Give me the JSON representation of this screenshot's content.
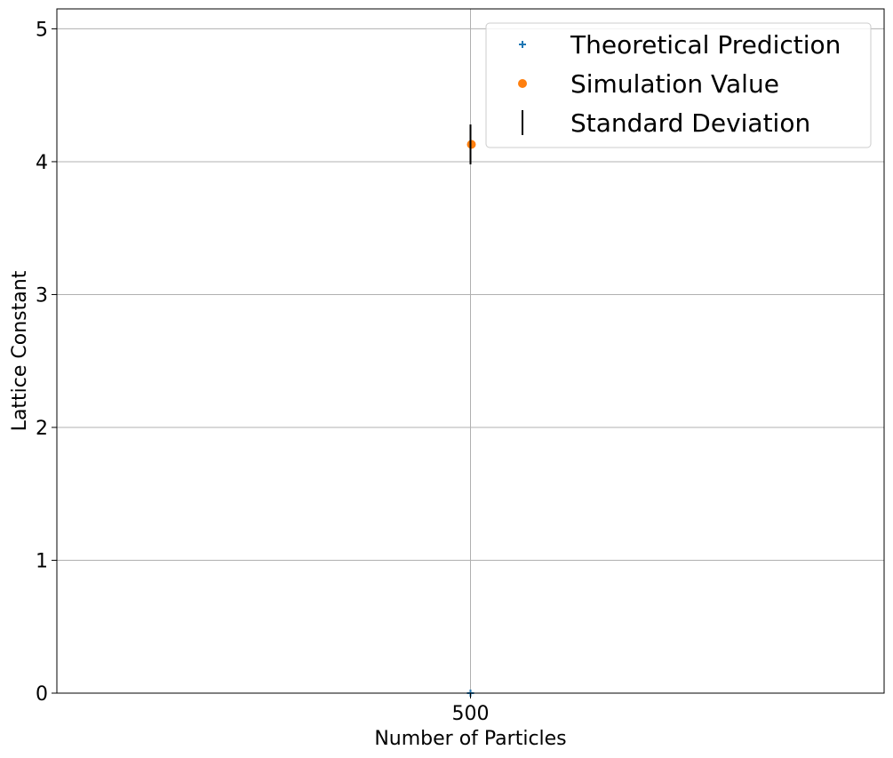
{
  "chart_data": {
    "type": "scatter",
    "xlabel": "Number of Particles",
    "ylabel": "Lattice Constant",
    "x_ticks": [
      500
    ],
    "x_tick_labels": [
      "500"
    ],
    "y_ticks": [
      0,
      1,
      2,
      3,
      4,
      5
    ],
    "y_tick_labels": [
      "0",
      "1",
      "2",
      "3",
      "4",
      "5"
    ],
    "xlim": [
      499,
      501
    ],
    "ylim": [
      0,
      5.15
    ],
    "grid": true,
    "legend_position": "top-right",
    "series": [
      {
        "name": "Theoretical Prediction",
        "marker": "plus",
        "color": "#1f77b4",
        "x": [
          500
        ],
        "y": [
          0
        ]
      },
      {
        "name": "Simulation Value",
        "marker": "circle",
        "color": "#ff7f0e",
        "x": [
          500
        ],
        "y": [
          4.13
        ]
      },
      {
        "name": "Standard Deviation",
        "marker": "vline",
        "color": "#000000",
        "x": [
          500
        ],
        "y": [
          4.13
        ],
        "std": [
          0.15
        ]
      }
    ]
  }
}
